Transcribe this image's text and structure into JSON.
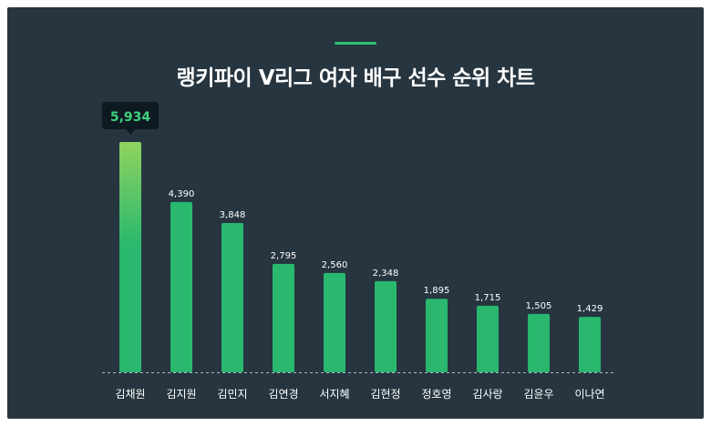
{
  "chart_data": {
    "type": "bar",
    "title": "랭키파이 V리그 여자 배구 선수 순위 차트",
    "categories": [
      "김채원",
      "김지원",
      "김민지",
      "김연경",
      "서지혜",
      "김현정",
      "정호영",
      "김사랑",
      "김윤우",
      "이나연"
    ],
    "values": [
      5934,
      4390,
      3848,
      2795,
      2560,
      2348,
      1895,
      1715,
      1505,
      1429
    ],
    "value_labels": [
      "5,934",
      "4,390",
      "3,848",
      "2,795",
      "2,560",
      "2,348",
      "1,895",
      "1,715",
      "1,505",
      "1,429"
    ],
    "ylim": [
      0,
      5934
    ],
    "grid": false,
    "highlight_index": 0,
    "colors": {
      "background": "#263540",
      "bar": "#29b86e",
      "bar_highlight_top": "#8fd35f",
      "highlight_label": "#3ed27e",
      "tooltip_bg": "#0e1a22",
      "text": "#ffffff",
      "baseline": "#aeb8bf"
    }
  }
}
